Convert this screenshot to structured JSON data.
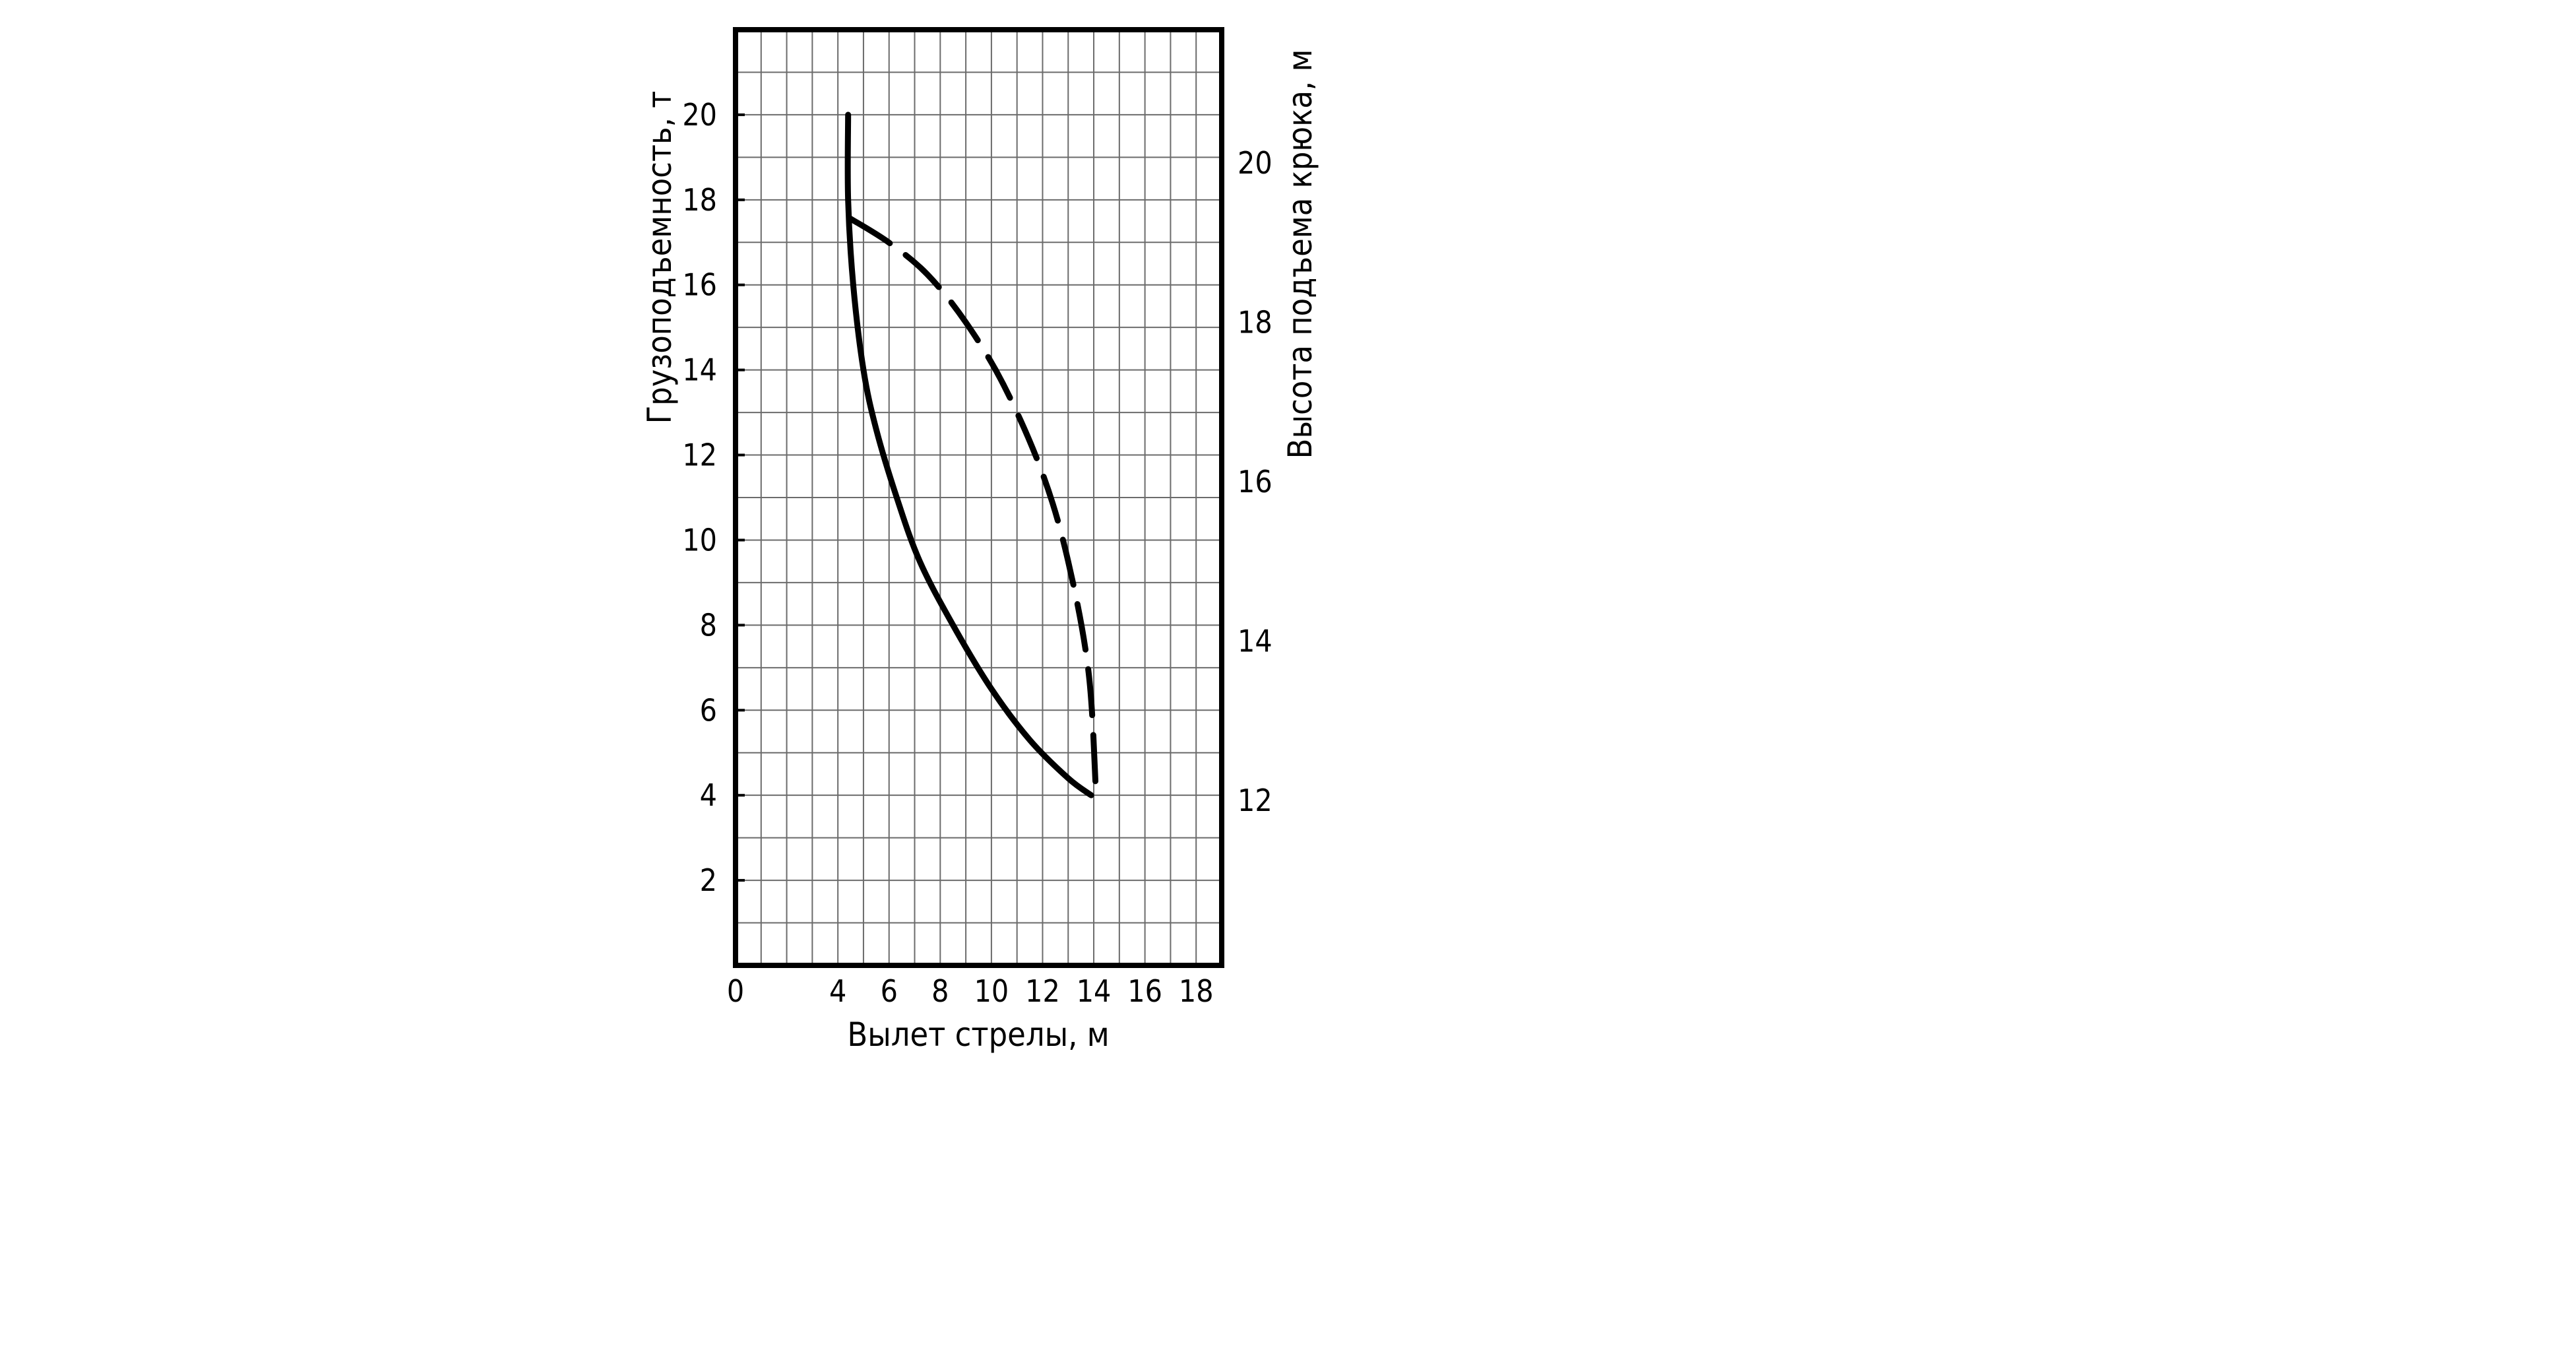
{
  "chart_data": {
    "type": "line",
    "xlabel": "Вылет стрелы, м",
    "ylabel": "Грузоподъемность, т",
    "y2label": "Высота подъема крюка, м",
    "xlim": [
      0,
      19
    ],
    "ylim": [
      0,
      22
    ],
    "x_ticks": [
      "0",
      "4",
      "6",
      "8",
      "10",
      "12",
      "14",
      "16",
      "18"
    ],
    "y_ticks": [
      "2",
      "4",
      "6",
      "8",
      "10",
      "12",
      "14",
      "16",
      "18",
      "20"
    ],
    "y2_ticks": [
      "12",
      "14",
      "16",
      "18",
      "20"
    ],
    "grid": true,
    "series": [
      {
        "axis": "left",
        "style": "solid",
        "x": [
          4.4,
          4.4,
          4.6,
          5.0,
          5.5,
          6.3,
          7.2,
          8.5,
          10.0,
          11.5,
          13.0,
          13.9
        ],
        "y": [
          20.0,
          18.0,
          16.0,
          14.0,
          12.6,
          11.0,
          9.5,
          8.0,
          6.5,
          5.3,
          4.4,
          4.0
        ]
      },
      {
        "axis": "right",
        "style": "dashed",
        "x": [
          4.5,
          6.0,
          7.5,
          9.0,
          10.5,
          12.0,
          13.0,
          13.8,
          14.1
        ],
        "y": [
          19.3,
          19.0,
          18.6,
          18.0,
          17.2,
          16.1,
          15.0,
          13.6,
          12.0
        ]
      }
    ]
  }
}
